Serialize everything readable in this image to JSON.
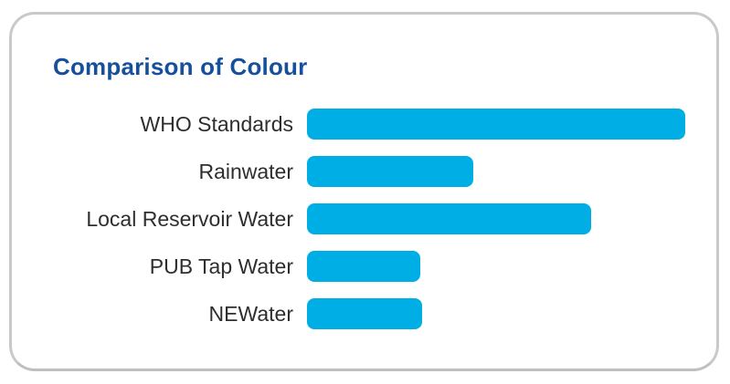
{
  "chart_data": {
    "type": "bar",
    "orientation": "horizontal",
    "title": "Comparison of Colour",
    "categories": [
      "WHO Standards",
      "Rainwater",
      "Local Reservoir Water",
      "PUB Tap Water",
      "NEWater"
    ],
    "values": [
      100,
      44,
      75,
      30,
      30.5
    ],
    "value_note": "relative bar lengths, percent of longest bar; no numeric axis shown",
    "xlabel": "",
    "ylabel": "",
    "axis_ticks": "none",
    "grid": false,
    "legend": "none",
    "bar_color": "#00aee6",
    "title_color": "#164f9b",
    "label_color": "#2e2e2e",
    "card_border_color": "#c9c9c9",
    "background_color": "#ffffff"
  }
}
